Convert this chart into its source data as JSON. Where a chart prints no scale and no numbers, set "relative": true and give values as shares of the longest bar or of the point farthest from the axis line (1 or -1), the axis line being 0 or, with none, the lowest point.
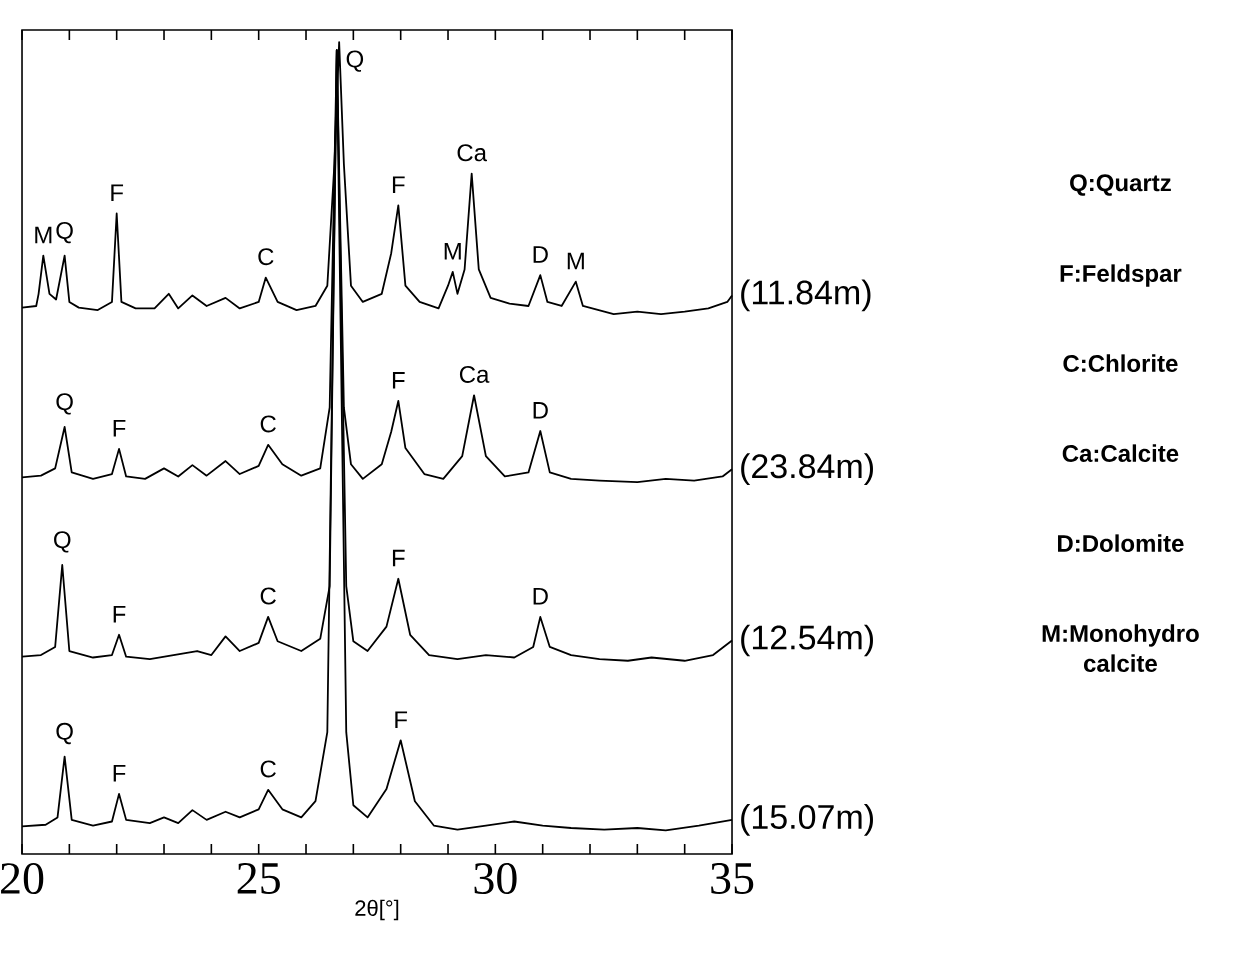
{
  "chart_data": {
    "type": "line",
    "relative": true,
    "xlabel": "2θ[°]",
    "marker": "none",
    "line_style": "solid",
    "xlim": [
      20,
      35
    ],
    "xticks": [
      20,
      {
        "value": 21,
        "label": null
      },
      {
        "value": 22,
        "label": null
      },
      {
        "value": 23,
        "label": null
      },
      {
        "value": 24,
        "label": null
      },
      25,
      {
        "value": 26,
        "label": null
      },
      {
        "value": 27,
        "label": null
      },
      {
        "value": 28,
        "label": null
      },
      {
        "value": 29,
        "label": null
      },
      30,
      {
        "value": 31,
        "label": null
      },
      {
        "value": 32,
        "label": null
      },
      {
        "value": 33,
        "label": null
      },
      {
        "value": 34,
        "label": null
      },
      35
    ],
    "series": [
      {
        "name": "(11.84m)",
        "color": "#000000",
        "x": [
          20.0,
          20.3,
          20.35,
          20.45,
          20.58,
          20.72,
          20.9,
          21.0,
          21.2,
          21.6,
          21.9,
          22.0,
          22.1,
          22.4,
          22.8,
          23.1,
          23.3,
          23.6,
          23.9,
          24.3,
          24.6,
          25.0,
          25.15,
          25.4,
          25.8,
          26.2,
          26.45,
          26.6,
          26.7,
          26.8,
          26.95,
          27.2,
          27.6,
          27.8,
          27.95,
          28.1,
          28.4,
          28.8,
          29.0,
          29.1,
          29.2,
          29.35,
          29.5,
          29.65,
          29.9,
          30.3,
          30.7,
          30.95,
          31.1,
          31.4,
          31.7,
          31.85,
          32.5,
          33.0,
          33.5,
          34.0,
          34.5,
          34.9,
          35.0
        ],
        "values": [
          0.673,
          0.675,
          0.69,
          0.737,
          0.69,
          0.683,
          0.737,
          0.68,
          0.673,
          0.67,
          0.68,
          0.789,
          0.68,
          0.672,
          0.672,
          0.69,
          0.672,
          0.688,
          0.675,
          0.685,
          0.672,
          0.68,
          0.71,
          0.68,
          0.67,
          0.675,
          0.7,
          0.85,
          1.0,
          0.85,
          0.7,
          0.68,
          0.69,
          0.74,
          0.799,
          0.7,
          0.68,
          0.672,
          0.7,
          0.717,
          0.69,
          0.72,
          0.838,
          0.72,
          0.685,
          0.678,
          0.675,
          0.713,
          0.68,
          0.675,
          0.705,
          0.675,
          0.665,
          0.668,
          0.665,
          0.668,
          0.672,
          0.68,
          0.688
        ]
      },
      {
        "name": "(23.84m)",
        "color": "#000000",
        "x": [
          20.0,
          20.4,
          20.7,
          20.9,
          21.05,
          21.5,
          21.9,
          22.05,
          22.2,
          22.6,
          23.0,
          23.3,
          23.6,
          23.9,
          24.3,
          24.6,
          25.0,
          25.2,
          25.5,
          25.9,
          26.3,
          26.5,
          26.65,
          26.8,
          26.95,
          27.2,
          27.6,
          27.8,
          27.95,
          28.1,
          28.5,
          28.9,
          29.3,
          29.55,
          29.8,
          30.2,
          30.7,
          30.95,
          31.15,
          31.6,
          32.2,
          33.0,
          33.6,
          34.2,
          34.8,
          35.0
        ],
        "values": [
          0.464,
          0.466,
          0.475,
          0.526,
          0.47,
          0.462,
          0.468,
          0.499,
          0.465,
          0.462,
          0.475,
          0.465,
          0.479,
          0.466,
          0.484,
          0.468,
          0.478,
          0.504,
          0.48,
          0.466,
          0.475,
          0.55,
          0.99,
          0.55,
          0.48,
          0.462,
          0.48,
          0.52,
          0.558,
          0.5,
          0.468,
          0.462,
          0.49,
          0.565,
          0.49,
          0.465,
          0.47,
          0.521,
          0.47,
          0.462,
          0.46,
          0.458,
          0.462,
          0.46,
          0.465,
          0.474
        ]
      },
      {
        "name": "(12.54m)",
        "color": "#000000",
        "x": [
          20.0,
          20.4,
          20.7,
          20.85,
          21.0,
          21.5,
          21.9,
          22.05,
          22.2,
          22.7,
          23.2,
          23.7,
          24.0,
          24.3,
          24.6,
          25.0,
          25.2,
          25.4,
          25.9,
          26.3,
          26.5,
          26.65,
          26.85,
          27.0,
          27.3,
          27.7,
          27.95,
          28.2,
          28.6,
          29.2,
          29.8,
          30.4,
          30.8,
          30.95,
          31.15,
          31.6,
          32.2,
          32.8,
          33.3,
          34.0,
          34.6,
          35.0
        ],
        "values": [
          0.243,
          0.245,
          0.255,
          0.356,
          0.25,
          0.242,
          0.245,
          0.27,
          0.243,
          0.24,
          0.245,
          0.25,
          0.245,
          0.268,
          0.25,
          0.26,
          0.292,
          0.262,
          0.25,
          0.265,
          0.33,
          0.99,
          0.33,
          0.262,
          0.25,
          0.28,
          0.339,
          0.27,
          0.245,
          0.24,
          0.245,
          0.242,
          0.255,
          0.292,
          0.255,
          0.245,
          0.24,
          0.238,
          0.242,
          0.238,
          0.245,
          0.263
        ]
      },
      {
        "name": "(15.07m)",
        "color": "#000000",
        "x": [
          20.0,
          20.5,
          20.75,
          20.9,
          21.05,
          21.5,
          21.9,
          22.05,
          22.2,
          22.7,
          23.0,
          23.3,
          23.6,
          23.9,
          24.3,
          24.6,
          25.0,
          25.2,
          25.5,
          25.9,
          26.2,
          26.45,
          26.65,
          26.85,
          27.0,
          27.3,
          27.7,
          28.0,
          28.3,
          28.7,
          29.2,
          29.8,
          30.4,
          31.0,
          31.6,
          32.3,
          33.0,
          33.6,
          34.3,
          35.0
        ],
        "values": [
          0.034,
          0.036,
          0.045,
          0.12,
          0.042,
          0.035,
          0.04,
          0.074,
          0.042,
          0.038,
          0.045,
          0.038,
          0.054,
          0.042,
          0.052,
          0.045,
          0.055,
          0.079,
          0.055,
          0.045,
          0.065,
          0.15,
          0.99,
          0.15,
          0.06,
          0.045,
          0.08,
          0.14,
          0.065,
          0.035,
          0.03,
          0.035,
          0.04,
          0.035,
          0.032,
          0.03,
          0.032,
          0.029,
          0.035,
          0.042
        ]
      }
    ],
    "annotations": [
      {
        "text": "M",
        "x": 20.45,
        "y": 0.737
      },
      {
        "text": "Q",
        "x": 20.9,
        "y": 0.737
      },
      {
        "text": "F",
        "x": 22.0,
        "y": 0.789
      },
      {
        "text": "C",
        "x": 25.15,
        "y": 0.71
      },
      {
        "text": "Q",
        "x": 26.7,
        "y": 1.0
      },
      {
        "text": "F",
        "x": 27.95,
        "y": 0.799
      },
      {
        "text": "M",
        "x": 29.1,
        "y": 0.717
      },
      {
        "text": "Ca",
        "x": 29.5,
        "y": 0.838
      },
      {
        "text": "D",
        "x": 30.95,
        "y": 0.713
      },
      {
        "text": "M",
        "x": 31.7,
        "y": 0.705
      },
      {
        "text": "Q",
        "x": 20.9,
        "y": 0.526
      },
      {
        "text": "F",
        "x": 22.05,
        "y": 0.499
      },
      {
        "text": "C",
        "x": 25.2,
        "y": 0.504
      },
      {
        "text": "F",
        "x": 27.95,
        "y": 0.558
      },
      {
        "text": "Ca",
        "x": 29.55,
        "y": 0.565
      },
      {
        "text": "D",
        "x": 30.95,
        "y": 0.521
      },
      {
        "text": "Q",
        "x": 20.85,
        "y": 0.356
      },
      {
        "text": "F",
        "x": 22.05,
        "y": 0.27
      },
      {
        "text": "C",
        "x": 25.2,
        "y": 0.292
      },
      {
        "text": "F",
        "x": 27.95,
        "y": 0.339
      },
      {
        "text": "D",
        "x": 30.95,
        "y": 0.292
      },
      {
        "text": "Q",
        "x": 20.9,
        "y": 0.12
      },
      {
        "text": "F",
        "x": 22.05,
        "y": 0.074
      },
      {
        "text": "C",
        "x": 25.2,
        "y": 0.079
      },
      {
        "text": "F",
        "x": 28.0,
        "y": 0.14
      },
      "Q:Quartz",
      "F:Feldspar",
      "C:Chlorite",
      "Ca:Calcite",
      "D:Dolomite",
      "M:Monohydro calcite"
    ]
  }
}
